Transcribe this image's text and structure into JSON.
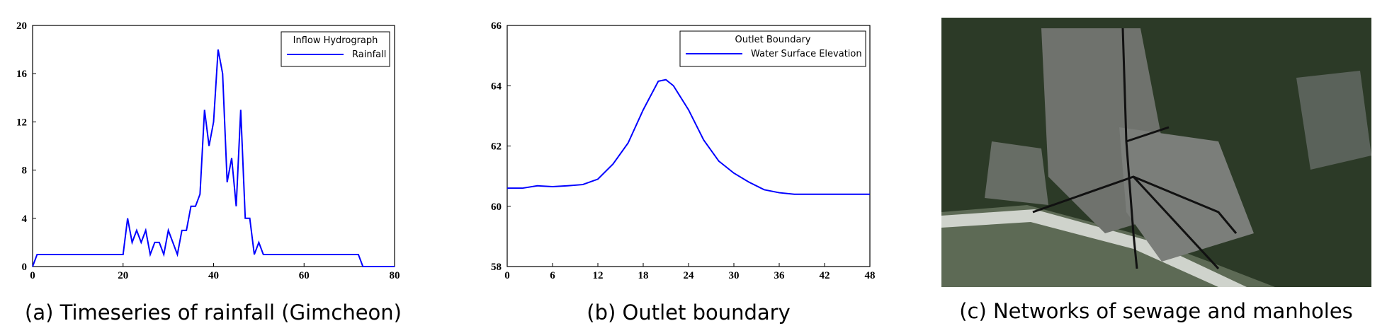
{
  "chart_data": [
    {
      "type": "line",
      "caption": "(a) Timeseries of rainfall (Gimcheon)",
      "legend_title": "Inflow Hydrograph",
      "legend": "upper right",
      "grid": false,
      "x": [
        0,
        1,
        2,
        3,
        4,
        5,
        6,
        7,
        8,
        9,
        10,
        11,
        12,
        13,
        14,
        15,
        16,
        17,
        18,
        19,
        20,
        21,
        22,
        23,
        24,
        25,
        26,
        27,
        28,
        29,
        30,
        31,
        32,
        33,
        34,
        35,
        36,
        37,
        38,
        39,
        40,
        41,
        42,
        43,
        44,
        45,
        46,
        47,
        48,
        49,
        50,
        51,
        52,
        53,
        54,
        55,
        56,
        57,
        58,
        59,
        60,
        61,
        62,
        63,
        64,
        65,
        66,
        67,
        68,
        69,
        70,
        71,
        72,
        73,
        74,
        75,
        76,
        77,
        78,
        79,
        80
      ],
      "series": [
        {
          "name": "Rainfall",
          "color": "#0000ff",
          "values": [
            0,
            1,
            1,
            1,
            1,
            1,
            1,
            1,
            1,
            1,
            1,
            1,
            1,
            1,
            1,
            1,
            1,
            1,
            1,
            1,
            1,
            4,
            2,
            3,
            2,
            3,
            1,
            2,
            2,
            1,
            3,
            2,
            1,
            3,
            3,
            5,
            5,
            6,
            13,
            10,
            12,
            18,
            16,
            7,
            9,
            5,
            13,
            4,
            4,
            1,
            2,
            1,
            1,
            1,
            1,
            1,
            1,
            1,
            1,
            1,
            1,
            1,
            1,
            1,
            1,
            1,
            1,
            1,
            1,
            1,
            1,
            1,
            1,
            0,
            0,
            0,
            0,
            0,
            0,
            0,
            0
          ]
        }
      ],
      "xlim": [
        0,
        80
      ],
      "xticks": [
        0,
        20,
        40,
        60,
        80
      ],
      "ylim": [
        0,
        20
      ],
      "yticks": [
        0,
        4,
        8,
        12,
        16,
        20
      ]
    },
    {
      "type": "line",
      "caption": "(b) Outlet boundary",
      "legend_title": "Outlet Boundary",
      "legend": "upper right",
      "grid": false,
      "x": [
        0,
        2,
        4,
        6,
        8,
        10,
        12,
        14,
        16,
        18,
        20,
        21,
        22,
        24,
        26,
        28,
        30,
        32,
        34,
        36,
        38,
        40,
        42,
        44,
        46,
        48
      ],
      "series": [
        {
          "name": "Water Surface Elevation",
          "color": "#0000ff",
          "values": [
            60.6,
            60.6,
            60.68,
            60.65,
            60.68,
            60.72,
            60.9,
            61.4,
            62.1,
            63.2,
            64.15,
            64.2,
            64.0,
            63.2,
            62.2,
            61.5,
            61.1,
            60.8,
            60.55,
            60.45,
            60.4,
            60.4,
            60.4,
            60.4,
            60.4,
            60.4
          ]
        }
      ],
      "xlim": [
        0,
        48
      ],
      "xticks": [
        0,
        6,
        12,
        18,
        24,
        30,
        36,
        42,
        48
      ],
      "ylim": [
        58,
        66
      ],
      "yticks": [
        58,
        60,
        62,
        64,
        66
      ]
    }
  ],
  "image": {
    "caption": "(c) Networks of sewage and manholes"
  }
}
